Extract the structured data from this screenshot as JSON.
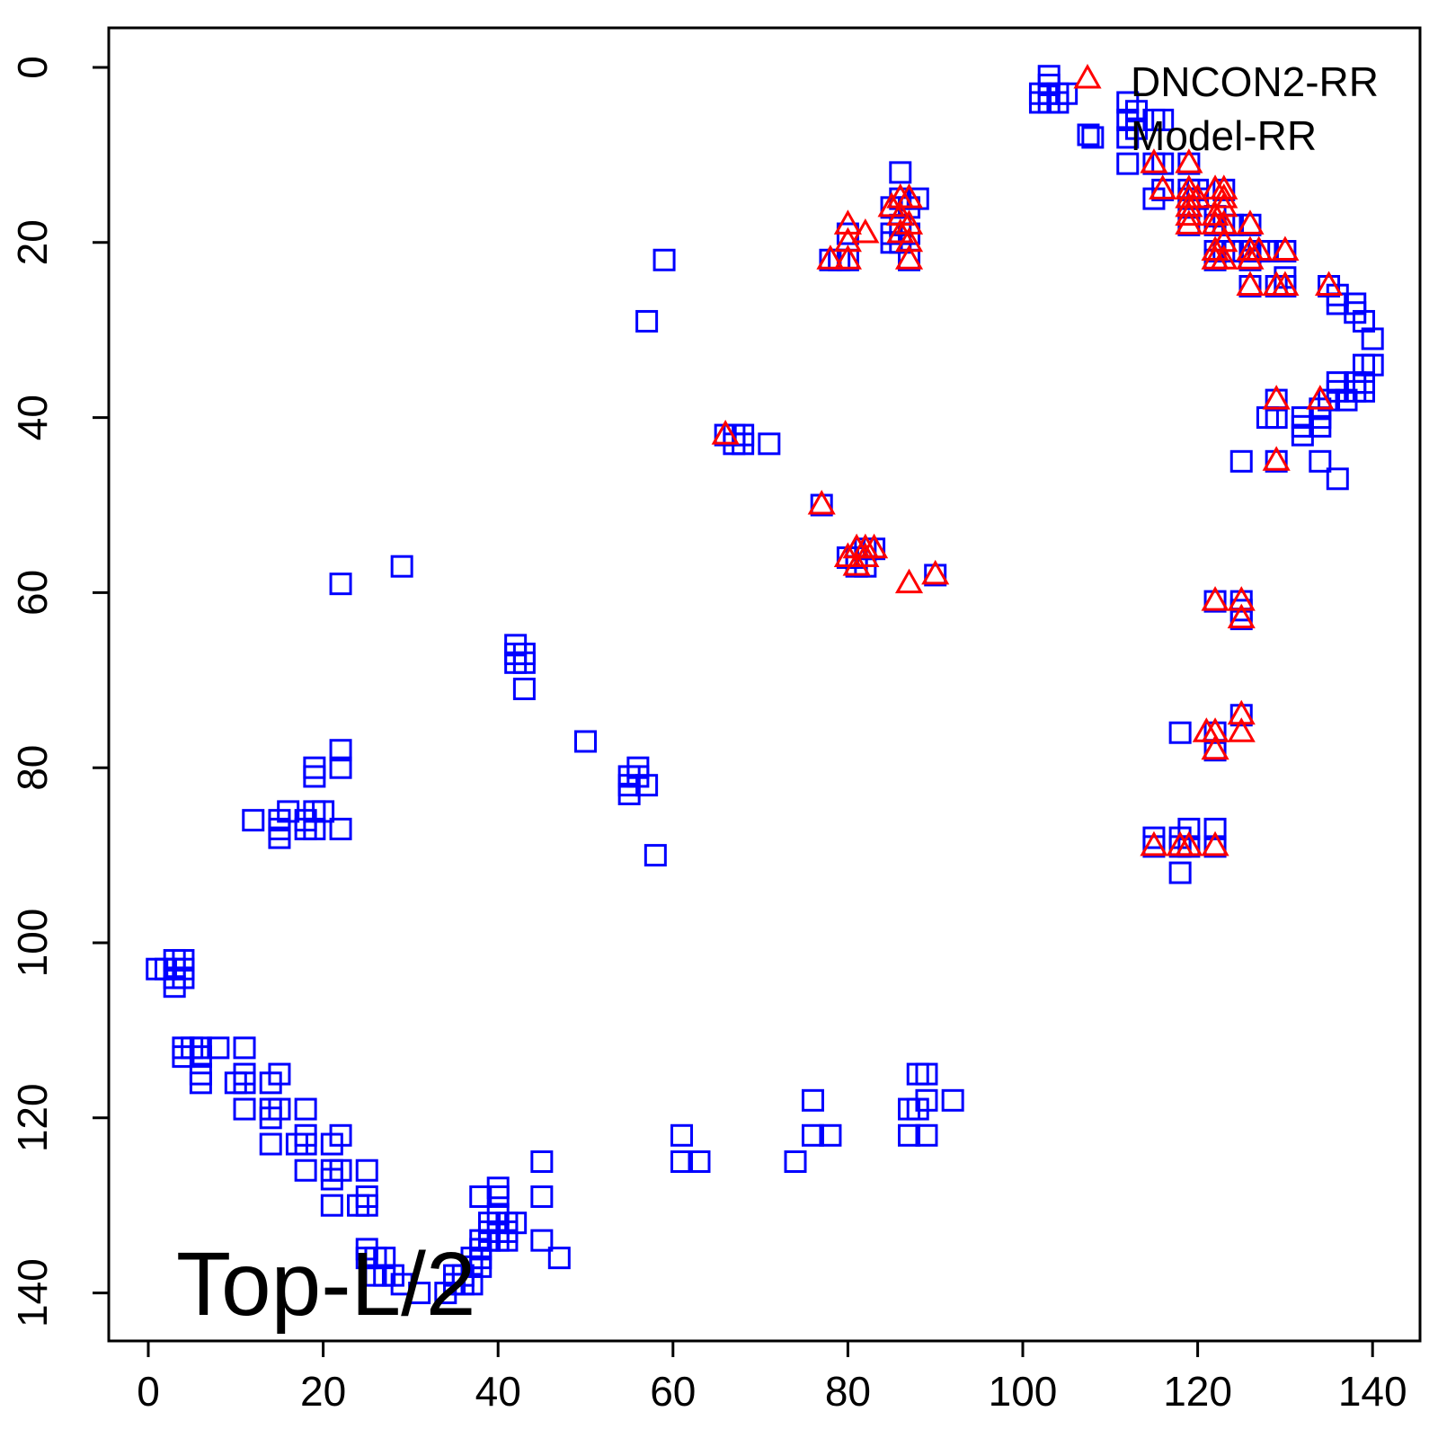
{
  "chart_data": {
    "type": "scatter",
    "title": "",
    "xlabel": "",
    "ylabel": "",
    "xlim": [
      -4.5,
      145
    ],
    "ylim": [
      145.5,
      -5.5
    ],
    "y_reversed": true,
    "x_ticks": [
      0,
      20,
      40,
      60,
      80,
      100,
      120,
      140
    ],
    "y_ticks": [
      0,
      20,
      40,
      60,
      80,
      100,
      120,
      140
    ],
    "grid": false,
    "legend_position": "top-right",
    "annotation": "Top-L/2",
    "series": [
      {
        "name": "DNCON2-RR",
        "marker": "triangle",
        "color": "#ff0000",
        "points": [
          [
            66,
            42
          ],
          [
            77,
            50
          ],
          [
            78,
            22
          ],
          [
            80,
            22
          ],
          [
            80,
            18
          ],
          [
            80,
            20
          ],
          [
            82,
            19
          ],
          [
            85,
            16
          ],
          [
            86,
            15
          ],
          [
            86,
            17
          ],
          [
            86,
            19
          ],
          [
            87,
            15
          ],
          [
            87,
            18
          ],
          [
            87,
            20
          ],
          [
            87,
            22
          ],
          [
            80,
            56
          ],
          [
            81,
            55
          ],
          [
            81,
            57
          ],
          [
            82,
            55
          ],
          [
            82,
            56
          ],
          [
            83,
            55
          ],
          [
            87,
            59
          ],
          [
            90,
            58
          ],
          [
            115,
            11
          ],
          [
            116,
            14
          ],
          [
            119,
            11
          ],
          [
            119,
            14
          ],
          [
            119,
            15
          ],
          [
            119,
            16
          ],
          [
            119,
            17
          ],
          [
            119,
            18
          ],
          [
            120,
            15
          ],
          [
            122,
            14
          ],
          [
            122,
            17
          ],
          [
            122,
            18
          ],
          [
            122,
            21
          ],
          [
            122,
            22
          ],
          [
            123,
            14
          ],
          [
            123,
            15
          ],
          [
            123,
            16
          ],
          [
            123,
            18
          ],
          [
            123,
            20
          ],
          [
            123,
            22
          ],
          [
            126,
            18
          ],
          [
            126,
            21
          ],
          [
            126,
            22
          ],
          [
            126,
            25
          ],
          [
            127,
            21
          ],
          [
            129,
            25
          ],
          [
            130,
            21
          ],
          [
            130,
            25
          ],
          [
            135,
            25
          ],
          [
            129,
            38
          ],
          [
            134,
            38
          ],
          [
            129,
            45
          ],
          [
            122,
            61
          ],
          [
            125,
            61
          ],
          [
            125,
            63
          ],
          [
            125,
            74
          ],
          [
            121,
            76
          ],
          [
            122,
            76
          ],
          [
            122,
            78
          ],
          [
            125,
            76
          ],
          [
            115,
            89
          ],
          [
            118,
            89
          ],
          [
            119,
            89
          ],
          [
            122,
            89
          ]
        ]
      },
      {
        "name": "Model-RR",
        "marker": "square",
        "color": "#0000ff",
        "points": [
          [
            103,
            1
          ],
          [
            103,
            2
          ],
          [
            103,
            4
          ],
          [
            104,
            3
          ],
          [
            102,
            3
          ],
          [
            102,
            4
          ],
          [
            103,
            3
          ],
          [
            104,
            4
          ],
          [
            105,
            3
          ],
          [
            108,
            8
          ],
          [
            112,
            4
          ],
          [
            113,
            5
          ],
          [
            112,
            6
          ],
          [
            113,
            7
          ],
          [
            112,
            8
          ],
          [
            112,
            11
          ],
          [
            115,
            6
          ],
          [
            116,
            6
          ],
          [
            115,
            11
          ],
          [
            116,
            11
          ],
          [
            115,
            15
          ],
          [
            116,
            14
          ],
          [
            119,
            11
          ],
          [
            119,
            14
          ],
          [
            119,
            15
          ],
          [
            119,
            16
          ],
          [
            120,
            14
          ],
          [
            119,
            18
          ],
          [
            120,
            15
          ],
          [
            123,
            14
          ],
          [
            122,
            17
          ],
          [
            122,
            18
          ],
          [
            123,
            18
          ],
          [
            124,
            18
          ],
          [
            122,
            21
          ],
          [
            122,
            22
          ],
          [
            123,
            21
          ],
          [
            124,
            21
          ],
          [
            126,
            18
          ],
          [
            126,
            21
          ],
          [
            126,
            22
          ],
          [
            126,
            25
          ],
          [
            127,
            21
          ],
          [
            128,
            21
          ],
          [
            129,
            25
          ],
          [
            130,
            21
          ],
          [
            130,
            24
          ],
          [
            130,
            25
          ],
          [
            135,
            25
          ],
          [
            136,
            26
          ],
          [
            136,
            27
          ],
          [
            138,
            27
          ],
          [
            138,
            28
          ],
          [
            139,
            29
          ],
          [
            140,
            31
          ],
          [
            139,
            34
          ],
          [
            140,
            34
          ],
          [
            138,
            36
          ],
          [
            138,
            37
          ],
          [
            139,
            36
          ],
          [
            136,
            36
          ],
          [
            136,
            37
          ],
          [
            137,
            38
          ],
          [
            139,
            37
          ],
          [
            132,
            40
          ],
          [
            132,
            41
          ],
          [
            132,
            42
          ],
          [
            134,
            39
          ],
          [
            134,
            40
          ],
          [
            134,
            41
          ],
          [
            135,
            38
          ],
          [
            129,
            38
          ],
          [
            129,
            40
          ],
          [
            128,
            40
          ],
          [
            125,
            45
          ],
          [
            129,
            45
          ],
          [
            134,
            45
          ],
          [
            136,
            47
          ],
          [
            86,
            12
          ],
          [
            86,
            15
          ],
          [
            88,
            15
          ],
          [
            85,
            16
          ],
          [
            87,
            16
          ],
          [
            85,
            19
          ],
          [
            86,
            18
          ],
          [
            87,
            19
          ],
          [
            85,
            20
          ],
          [
            86,
            20
          ],
          [
            87,
            22
          ],
          [
            79,
            22
          ],
          [
            78,
            22
          ],
          [
            80,
            22
          ],
          [
            80,
            19
          ],
          [
            59,
            22
          ],
          [
            57,
            29
          ],
          [
            66,
            42
          ],
          [
            67,
            42
          ],
          [
            67,
            43
          ],
          [
            68,
            42
          ],
          [
            68,
            43
          ],
          [
            71,
            43
          ],
          [
            77,
            50
          ],
          [
            81,
            56
          ],
          [
            80,
            56
          ],
          [
            82,
            55
          ],
          [
            82,
            57
          ],
          [
            81,
            57
          ],
          [
            83,
            55
          ],
          [
            90,
            58
          ],
          [
            122,
            61
          ],
          [
            125,
            61
          ],
          [
            125,
            62
          ],
          [
            125,
            63
          ],
          [
            125,
            74
          ],
          [
            118,
            76
          ],
          [
            122,
            76
          ],
          [
            122,
            78
          ],
          [
            115,
            88
          ],
          [
            118,
            88
          ],
          [
            119,
            87
          ],
          [
            122,
            87
          ],
          [
            115,
            89
          ],
          [
            118,
            89
          ],
          [
            119,
            89
          ],
          [
            122,
            89
          ],
          [
            118,
            92
          ],
          [
            29,
            57
          ],
          [
            22,
            59
          ],
          [
            42,
            66
          ],
          [
            42,
            67
          ],
          [
            43,
            67
          ],
          [
            42,
            68
          ],
          [
            43,
            68
          ],
          [
            43,
            71
          ],
          [
            50,
            77
          ],
          [
            56,
            80
          ],
          [
            55,
            81
          ],
          [
            56,
            81
          ],
          [
            55,
            82
          ],
          [
            57,
            82
          ],
          [
            55,
            83
          ],
          [
            58,
            90
          ],
          [
            22,
            78
          ],
          [
            19,
            80
          ],
          [
            22,
            80
          ],
          [
            19,
            81
          ],
          [
            16,
            85
          ],
          [
            19,
            85
          ],
          [
            20,
            85
          ],
          [
            12,
            86
          ],
          [
            15,
            86
          ],
          [
            18,
            86
          ],
          [
            15,
            87
          ],
          [
            18,
            87
          ],
          [
            19,
            87
          ],
          [
            22,
            87
          ],
          [
            15,
            88
          ],
          [
            1,
            103
          ],
          [
            3,
            102
          ],
          [
            4,
            102
          ],
          [
            3,
            103
          ],
          [
            4,
            103
          ],
          [
            2,
            103
          ],
          [
            3,
            104
          ],
          [
            4,
            104
          ],
          [
            3,
            105
          ],
          [
            4,
            112
          ],
          [
            5,
            112
          ],
          [
            6,
            112
          ],
          [
            8,
            112
          ],
          [
            4,
            113
          ],
          [
            6,
            113
          ],
          [
            11,
            112
          ],
          [
            6,
            115
          ],
          [
            6,
            116
          ],
          [
            10,
            116
          ],
          [
            11,
            115
          ],
          [
            11,
            116
          ],
          [
            15,
            115
          ],
          [
            14,
            116
          ],
          [
            11,
            119
          ],
          [
            14,
            119
          ],
          [
            15,
            119
          ],
          [
            18,
            119
          ],
          [
            14,
            120
          ],
          [
            14,
            123
          ],
          [
            17,
            123
          ],
          [
            18,
            122
          ],
          [
            18,
            123
          ],
          [
            21,
            123
          ],
          [
            22,
            122
          ],
          [
            18,
            126
          ],
          [
            21,
            126
          ],
          [
            22,
            126
          ],
          [
            25,
            126
          ],
          [
            21,
            127
          ],
          [
            21,
            130
          ],
          [
            24,
            130
          ],
          [
            25,
            129
          ],
          [
            25,
            130
          ],
          [
            25,
            135
          ],
          [
            25,
            136
          ],
          [
            26,
            136
          ],
          [
            27,
            136
          ],
          [
            26,
            138
          ],
          [
            27,
            138
          ],
          [
            28,
            138
          ],
          [
            29,
            139
          ],
          [
            31,
            140
          ],
          [
            34,
            140
          ],
          [
            35,
            139
          ],
          [
            35,
            138
          ],
          [
            36,
            139
          ],
          [
            37,
            139
          ],
          [
            36,
            138
          ],
          [
            37,
            137
          ],
          [
            38,
            137
          ],
          [
            37,
            136
          ],
          [
            38,
            136
          ],
          [
            38,
            135
          ],
          [
            38,
            134
          ],
          [
            39,
            134
          ],
          [
            39,
            133
          ],
          [
            40,
            133
          ],
          [
            40,
            134
          ],
          [
            41,
            134
          ],
          [
            41,
            133
          ],
          [
            39,
            132
          ],
          [
            41,
            132
          ],
          [
            42,
            132
          ],
          [
            40,
            131
          ],
          [
            38,
            129
          ],
          [
            40,
            129
          ],
          [
            40,
            128
          ],
          [
            45,
            125
          ],
          [
            45,
            129
          ],
          [
            45,
            134
          ],
          [
            47,
            136
          ],
          [
            61,
            122
          ],
          [
            61,
            125
          ],
          [
            63,
            125
          ],
          [
            74,
            125
          ],
          [
            76,
            118
          ],
          [
            76,
            122
          ],
          [
            78,
            122
          ],
          [
            87,
            119
          ],
          [
            88,
            119
          ],
          [
            87,
            122
          ],
          [
            89,
            122
          ],
          [
            88,
            115
          ],
          [
            89,
            115
          ],
          [
            89,
            118
          ],
          [
            92,
            118
          ]
        ]
      }
    ]
  }
}
